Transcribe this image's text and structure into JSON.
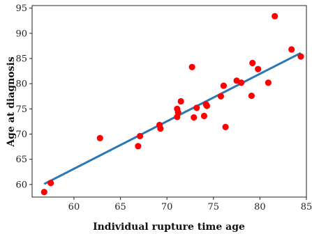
{
  "chart_data": {
    "type": "scatter",
    "title": "",
    "xlabel": "Individual rupture time age",
    "ylabel": "Age at diagnosis",
    "xlim": [
      55.5,
      85
    ],
    "ylim": [
      57.5,
      95.5
    ],
    "xticks": [
      60,
      65,
      70,
      75,
      80,
      85
    ],
    "yticks": [
      60,
      65,
      70,
      75,
      80,
      85,
      90,
      95
    ],
    "grid": false,
    "legend": "none",
    "point_color": "#ff0000",
    "line_color": "#2a78b4",
    "points": [
      {
        "x": 56.8,
        "y": 58.5
      },
      {
        "x": 57.5,
        "y": 60.3
      },
      {
        "x": 62.8,
        "y": 69.2
      },
      {
        "x": 66.9,
        "y": 67.6
      },
      {
        "x": 67.1,
        "y": 69.6
      },
      {
        "x": 69.2,
        "y": 71.8
      },
      {
        "x": 69.3,
        "y": 71.1
      },
      {
        "x": 71.1,
        "y": 75.0
      },
      {
        "x": 71.2,
        "y": 74.3
      },
      {
        "x": 71.1,
        "y": 73.4
      },
      {
        "x": 71.5,
        "y": 76.5
      },
      {
        "x": 72.7,
        "y": 83.3
      },
      {
        "x": 72.9,
        "y": 73.3
      },
      {
        "x": 73.2,
        "y": 75.2
      },
      {
        "x": 74.0,
        "y": 73.6
      },
      {
        "x": 74.2,
        "y": 75.9
      },
      {
        "x": 74.3,
        "y": 75.6
      },
      {
        "x": 75.8,
        "y": 77.5
      },
      {
        "x": 76.1,
        "y": 79.6
      },
      {
        "x": 76.3,
        "y": 71.4
      },
      {
        "x": 77.5,
        "y": 80.6
      },
      {
        "x": 78.0,
        "y": 80.2
      },
      {
        "x": 79.1,
        "y": 77.6
      },
      {
        "x": 79.2,
        "y": 84.1
      },
      {
        "x": 79.8,
        "y": 82.9
      },
      {
        "x": 80.9,
        "y": 80.2
      },
      {
        "x": 81.6,
        "y": 93.4
      },
      {
        "x": 83.4,
        "y": 86.8
      },
      {
        "x": 84.4,
        "y": 85.4
      }
    ],
    "trend_line": {
      "x": [
        56.8,
        84.4
      ],
      "y": [
        60.1,
        86.1
      ]
    }
  }
}
